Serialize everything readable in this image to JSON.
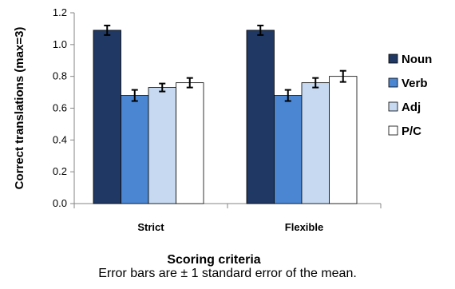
{
  "chart_data": {
    "type": "bar",
    "categories": [
      "Strict",
      "Flexible"
    ],
    "series": [
      {
        "name": "Noun",
        "values": [
          1.09,
          1.09
        ],
        "errors": [
          0.03,
          0.03
        ],
        "color": "#1f3864"
      },
      {
        "name": "Verb",
        "values": [
          0.68,
          0.68
        ],
        "errors": [
          0.035,
          0.035
        ],
        "color": "#4a86d2"
      },
      {
        "name": "Adj",
        "values": [
          0.73,
          0.76
        ],
        "errors": [
          0.025,
          0.03
        ],
        "color": "#c6d9f1"
      },
      {
        "name": "P/C",
        "values": [
          0.76,
          0.8
        ],
        "errors": [
          0.03,
          0.035
        ],
        "color": "#ffffff"
      }
    ],
    "xlabel": "Scoring criteria",
    "ylabel": "Correct translations (max=3)",
    "ylim": [
      0,
      1.2
    ],
    "yticks": [
      "0.0",
      "0.2",
      "0.4",
      "0.6",
      "0.8",
      "1.0",
      "1.2"
    ],
    "grid": false,
    "legend_position": "right",
    "note": "Error bars are ± 1 standard error of the mean."
  }
}
